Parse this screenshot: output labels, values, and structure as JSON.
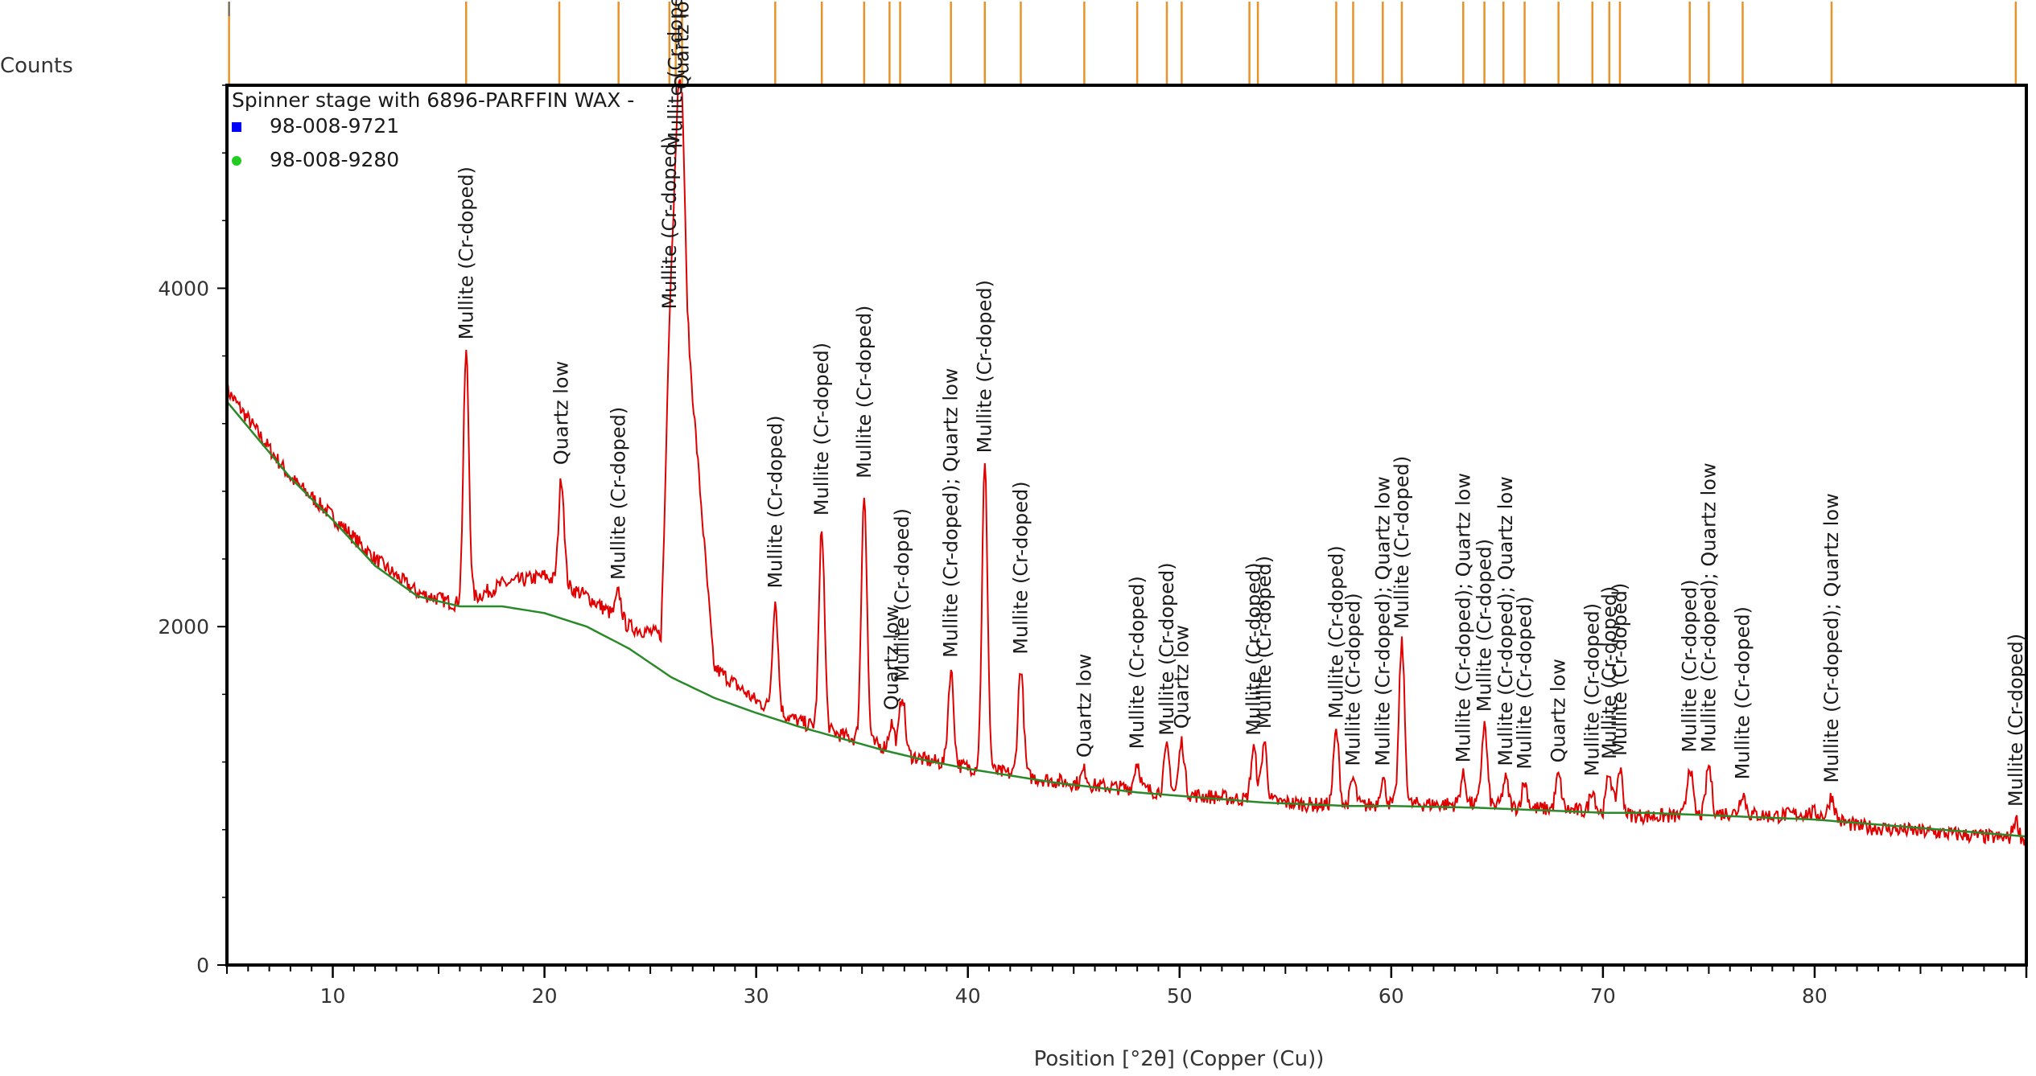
{
  "chart_data": {
    "type": "line",
    "ylabel": "Counts",
    "xlabel": "Position [°2θ] (Copper (Cu))",
    "xlim": [
      5,
      90
    ],
    "ylim": [
      0,
      5200
    ],
    "x_ticks": [
      10,
      20,
      30,
      40,
      50,
      60,
      70,
      80
    ],
    "y_ticks": [
      0,
      2000,
      4000
    ],
    "legend": {
      "position": "top-left",
      "title": "Spinner stage with  6896-PARFFIN WAX -",
      "entries": [
        {
          "label": "98-008-9721",
          "color": "#0000ff",
          "marker": "square"
        },
        {
          "label": "98-008-9280",
          "color": "#22cc22",
          "marker": "circle"
        }
      ]
    },
    "series": [
      {
        "color": "#e00000",
        "style": "noisy line",
        "x": [
          5,
          8,
          10,
          12,
          14,
          16,
          18,
          20,
          22,
          24,
          25.5,
          26,
          26.3,
          26.7,
          28,
          30,
          32,
          34,
          36,
          38,
          40,
          42,
          44,
          46,
          48,
          50,
          52,
          54,
          56,
          58,
          60,
          62,
          64,
          66,
          68,
          70,
          72,
          74,
          76,
          78,
          80,
          82,
          84,
          86,
          88,
          90
        ],
        "y": [
          3400,
          2880,
          2650,
          2400,
          2200,
          2130,
          2250,
          2300,
          2180,
          2000,
          1950,
          3700,
          4600,
          3850,
          1760,
          1560,
          1440,
          1360,
          1290,
          1210,
          1170,
          1130,
          1090,
          1060,
          1040,
          1010,
          990,
          970,
          950,
          940,
          950,
          950,
          950,
          930,
          920,
          900,
          880,
          880,
          900,
          880,
          900,
          820,
          800,
          780,
          760,
          740
        ]
      },
      {
        "color": "#2a8a2a",
        "style": "smooth background",
        "x": [
          5,
          8,
          10,
          12,
          14,
          16,
          18,
          20,
          22,
          24,
          26,
          28,
          30,
          32,
          34,
          36,
          38,
          40,
          42,
          44,
          46,
          48,
          50,
          52,
          54,
          56,
          58,
          60,
          62,
          64,
          66,
          68,
          70,
          72,
          74,
          76,
          78,
          80,
          82,
          84,
          86,
          88,
          90
        ],
        "y": [
          3330,
          2880,
          2630,
          2360,
          2180,
          2120,
          2120,
          2080,
          2000,
          1870,
          1700,
          1580,
          1490,
          1410,
          1340,
          1270,
          1210,
          1160,
          1120,
          1080,
          1050,
          1020,
          1000,
          980,
          960,
          950,
          940,
          940,
          935,
          930,
          920,
          910,
          900,
          900,
          890,
          880,
          870,
          860,
          840,
          820,
          800,
          780,
          760
        ]
      }
    ],
    "peaks": [
      {
        "x": 16.3,
        "y": 3620,
        "label": "Mullite (Cr-doped)"
      },
      {
        "x": 20.8,
        "y": 2880,
        "label": "Quartz low"
      },
      {
        "x": 23.5,
        "y": 2200,
        "label": "Mullite (Cr-doped)"
      },
      {
        "x": 25.9,
        "y": 3800,
        "label": "Mullite (Cr-doped)"
      },
      {
        "x": 26.2,
        "y": 4750,
        "label": "Mullite (Cr-doped)"
      },
      {
        "x": 26.5,
        "y": 5100,
        "label": "Quartz low"
      },
      {
        "x": 30.9,
        "y": 2150,
        "label": "Mullite (Cr-doped)"
      },
      {
        "x": 33.1,
        "y": 2580,
        "label": "Mullite (Cr-doped)"
      },
      {
        "x": 35.1,
        "y": 2800,
        "label": "Mullite (Cr-doped)"
      },
      {
        "x": 36.4,
        "y": 1430,
        "label": "Quartz low"
      },
      {
        "x": 36.9,
        "y": 1600,
        "label": "Mullite (Cr-doped)"
      },
      {
        "x": 39.2,
        "y": 1740,
        "label": "Mullite (Cr-doped);  Quartz low"
      },
      {
        "x": 40.8,
        "y": 2950,
        "label": "Mullite (Cr-doped)"
      },
      {
        "x": 42.5,
        "y": 1760,
        "label": "Mullite (Cr-doped)"
      },
      {
        "x": 45.5,
        "y": 1150,
        "label": "Quartz low"
      },
      {
        "x": 48.0,
        "y": 1200,
        "label": "Mullite (Cr-doped)"
      },
      {
        "x": 49.4,
        "y": 1280,
        "label": "Mullite (Cr-doped)"
      },
      {
        "x": 50.1,
        "y": 1320,
        "label": "Quartz low"
      },
      {
        "x": 53.5,
        "y": 1280,
        "label": "Mullite (Cr-doped)"
      },
      {
        "x": 54.0,
        "y": 1320,
        "label": "Mullite (Cr-doped)"
      },
      {
        "x": 57.4,
        "y": 1380,
        "label": "Mullite (Cr-doped)"
      },
      {
        "x": 58.2,
        "y": 1100,
        "label": "Mullite (Cr-doped)"
      },
      {
        "x": 59.6,
        "y": 1100,
        "label": "Mullite (Cr-doped);  Quartz low"
      },
      {
        "x": 60.5,
        "y": 1910,
        "label": "Mullite (Cr-doped)"
      },
      {
        "x": 63.4,
        "y": 1120,
        "label": "Mullite (Cr-doped);  Quartz low"
      },
      {
        "x": 64.4,
        "y": 1420,
        "label": "Mullite (Cr-doped)"
      },
      {
        "x": 65.4,
        "y": 1100,
        "label": "Mullite (Cr-doped);  Quartz low"
      },
      {
        "x": 66.3,
        "y": 1080,
        "label": "Mullite (Cr-doped)"
      },
      {
        "x": 67.9,
        "y": 1120,
        "label": "Quartz low"
      },
      {
        "x": 69.5,
        "y": 1040,
        "label": "Mullite (Cr-doped)"
      },
      {
        "x": 70.3,
        "y": 1140,
        "label": "Mullite (Cr-doped)"
      },
      {
        "x": 70.8,
        "y": 1160,
        "label": "Mullite (Cr-doped)"
      },
      {
        "x": 74.1,
        "y": 1180,
        "label": "Mullite (Cr-doped)"
      },
      {
        "x": 75.0,
        "y": 1180,
        "label": "Mullite (Cr-doped);  Quartz low"
      },
      {
        "x": 76.6,
        "y": 1020,
        "label": "Mullite (Cr-doped)"
      },
      {
        "x": 80.8,
        "y": 1000,
        "label": "Mullite (Cr-doped);  Quartz low"
      },
      {
        "x": 89.5,
        "y": 860,
        "label": "Mullite (Cr-doped)"
      }
    ],
    "reference_lines_x": [
      5.1,
      16.3,
      20.7,
      23.5,
      25.9,
      26.2,
      26.5,
      30.9,
      33.1,
      35.1,
      36.3,
      36.8,
      39.2,
      40.8,
      42.5,
      45.5,
      48.0,
      49.4,
      50.1,
      53.3,
      53.7,
      57.4,
      58.2,
      59.6,
      60.5,
      63.4,
      64.4,
      65.3,
      66.3,
      67.9,
      69.5,
      70.3,
      70.8,
      74.1,
      75.0,
      76.6,
      80.8,
      89.5
    ]
  }
}
